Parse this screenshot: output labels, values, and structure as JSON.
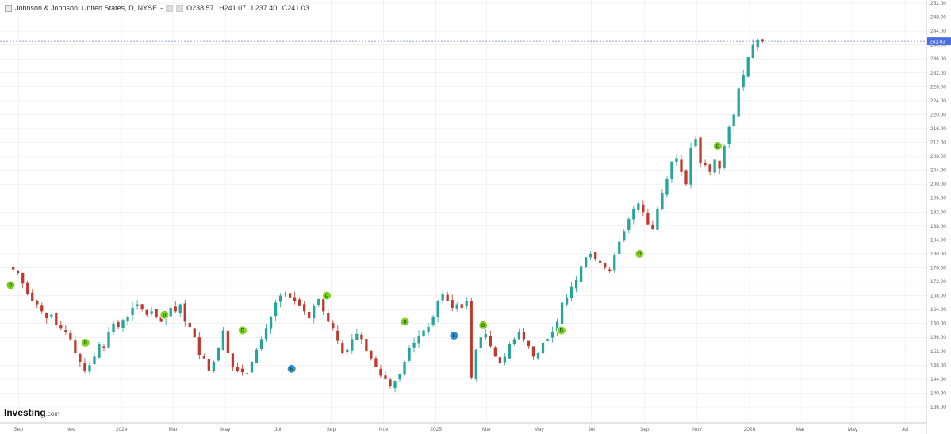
{
  "header": {
    "symbol": "Johnson & Johnson, United States, D, NYSE",
    "sep": "-",
    "open": "O238.57",
    "high": "H241.07",
    "low": "L237.40",
    "close": "C241.03"
  },
  "logo": {
    "main": "Investing",
    "suffix": ".com"
  },
  "colors": {
    "up": "#26a69a",
    "down": "#c0392b",
    "price_line": "#6b7de0",
    "price_label_bg": "#4a6ee0",
    "grid": "#e6e6e6",
    "marker_dividend": "#7ed321",
    "marker_other": "#2d8ce6"
  },
  "chart_data": {
    "type": "line",
    "title": "Johnson & Johnson, United States, D, NYSE",
    "xlabel": "",
    "ylabel": "",
    "x_ticks": [
      "Sep",
      "Nov",
      "2024",
      "Mar",
      "May",
      "Jul",
      "Sep",
      "Nov",
      "2025",
      "Mar",
      "May",
      "Jul",
      "Sep",
      "Nov",
      "2026",
      "Mar",
      "May",
      "Jul"
    ],
    "y_ticks": [
      "136.00",
      "140.00",
      "144.00",
      "148.00",
      "152.00",
      "156.00",
      "160.00",
      "164.00",
      "168.00",
      "172.00",
      "176.00",
      "180.00",
      "184.00",
      "188.00",
      "192.00",
      "196.00",
      "200.00",
      "204.00",
      "208.00",
      "212.00",
      "216.00",
      "220.00",
      "224.00",
      "228.00",
      "232.00",
      "236.00",
      "240.00",
      "244.00",
      "248.00",
      "252.00"
    ],
    "ylim": [
      136,
      252
    ],
    "last_price_label": "241.03",
    "grid": true,
    "series": [
      {
        "values": [
          175.5,
          174.5,
          171.5,
          168.5,
          166.5,
          165.5,
          163.5,
          161.5,
          162.5,
          159.5,
          158.5,
          157.5,
          155.5,
          151.5,
          149.0,
          146.5,
          148.0,
          150.5,
          154.0,
          153.0,
          157.5,
          160.0,
          159.0,
          161.0,
          162.0,
          164.5,
          165.5,
          164.0,
          162.5,
          163.5,
          162.0,
          160.5,
          162.0,
          164.5,
          163.5,
          165.5,
          160.5,
          159.0,
          156.0,
          151.0,
          150.0,
          146.5,
          149.0,
          153.0,
          158.0,
          151.5,
          147.5,
          146.5,
          146.0,
          145.5,
          149.0,
          152.5,
          155.5,
          158.5,
          162.0,
          166.0,
          168.0,
          168.5,
          167.5,
          166.5,
          165.0,
          163.5,
          161.5,
          165.0,
          167.0,
          163.5,
          160.5,
          158.5,
          155.0,
          151.5,
          152.5,
          155.5,
          157.0,
          155.5,
          152.0,
          150.0,
          147.5,
          145.0,
          144.0,
          142.0,
          143.5,
          145.5,
          149.0,
          153.0,
          154.5,
          156.5,
          158.0,
          159.0,
          162.0,
          166.5,
          168.5,
          166.5,
          164.5,
          165.5,
          164.5,
          166.5,
          144.5,
          152.5,
          156.0,
          157.0,
          153.5,
          150.5,
          148.5,
          150.5,
          154.0,
          155.5,
          157.5,
          155.5,
          153.5,
          150.5,
          151.5,
          154.5,
          155.5,
          157.5,
          160.5,
          166.0,
          167.5,
          170.5,
          172.5,
          176.5,
          179.0,
          180.0,
          178.5,
          177.5,
          176.0,
          175.0,
          179.5,
          183.5,
          186.5,
          190.0,
          193.0,
          194.5,
          192.0,
          188.5,
          187.0,
          193.0,
          197.5,
          201.5,
          206.5,
          207.5,
          203.5,
          200.0,
          210.5,
          213.0,
          206.0,
          205.5,
          203.5,
          207.0,
          204.5,
          211.0,
          216.5,
          220.0,
          227.5,
          231.5,
          236.5,
          240.0,
          241.5,
          241.0
        ],
        "x_start": "2023-08-28",
        "x_end": "2026-01-16",
        "note_last_close": 241.03
      }
    ],
    "events": [
      {
        "type": "D",
        "date": "2023-08-25",
        "value": 171.0
      },
      {
        "type": "D",
        "date": "2023-11-20",
        "value": 154.5
      },
      {
        "type": "D",
        "date": "2024-02-20",
        "value": 162.5
      },
      {
        "type": "D",
        "date": "2024-05-21",
        "value": 158.0
      },
      {
        "type": "E",
        "date": "2024-07-17",
        "value": 147.0
      },
      {
        "type": "D",
        "date": "2024-08-27",
        "value": 168.0
      },
      {
        "type": "D",
        "date": "2024-11-26",
        "value": 160.5
      },
      {
        "type": "E",
        "date": "2025-01-22",
        "value": 156.5
      },
      {
        "type": "D",
        "date": "2025-02-25",
        "value": 159.5
      },
      {
        "type": "D",
        "date": "2025-05-27",
        "value": 158.0
      },
      {
        "type": "D",
        "date": "2025-08-26",
        "value": 180.0
      },
      {
        "type": "D",
        "date": "2025-11-25",
        "value": 211.0
      }
    ]
  }
}
